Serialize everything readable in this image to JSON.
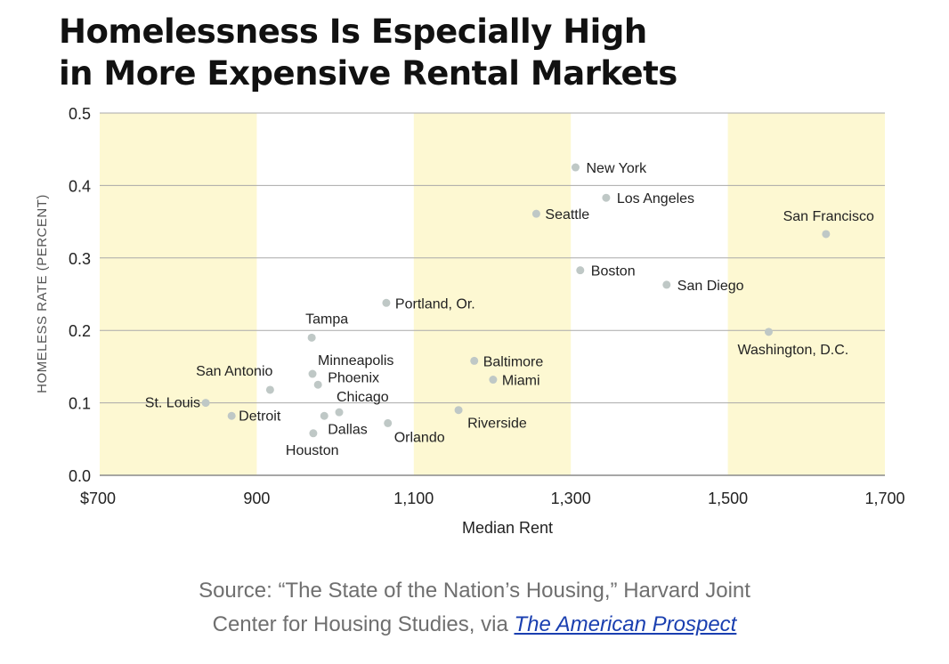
{
  "chart_data": {
    "type": "scatter",
    "title_lines": [
      "Homelessness Is Especially High",
      "in More Expensive Rental Markets"
    ],
    "xlabel": "Median Rent",
    "ylabel": "HOMELESS RATE (PERCENT)",
    "xlim": [
      700,
      1700
    ],
    "ylim": [
      0.0,
      0.5
    ],
    "x_ticks": [
      700,
      900,
      1100,
      1300,
      1500,
      1700
    ],
    "x_tick_labels": [
      "$700",
      "900",
      "1,100",
      "1,300",
      "1,500",
      "1,700"
    ],
    "y_ticks": [
      0.0,
      0.1,
      0.2,
      0.3,
      0.4,
      0.5
    ],
    "y_tick_labels": [
      "0.0",
      "0.1",
      "0.2",
      "0.3",
      "0.4",
      "0.5"
    ],
    "shaded_bands": [
      [
        700,
        900
      ],
      [
        1100,
        1300
      ],
      [
        1500,
        1700
      ]
    ],
    "band_color": "#fdf8d2",
    "grid": true,
    "point_color": "#bfc8c6",
    "points": [
      {
        "label": "St. Louis",
        "x": 835,
        "y": 0.1
      },
      {
        "label": "Detroit",
        "x": 868,
        "y": 0.082
      },
      {
        "label": "San Antonio",
        "x": 917,
        "y": 0.118
      },
      {
        "label": "Tampa",
        "x": 970,
        "y": 0.19
      },
      {
        "label": "Minneapolis",
        "x": 971,
        "y": 0.14
      },
      {
        "label": "Phoenix",
        "x": 978,
        "y": 0.125
      },
      {
        "label": "Chicago",
        "x": 1005,
        "y": 0.087
      },
      {
        "label": "Dallas",
        "x": 986,
        "y": 0.082
      },
      {
        "label": "Houston",
        "x": 972,
        "y": 0.058
      },
      {
        "label": "Portland, Or.",
        "x": 1065,
        "y": 0.238
      },
      {
        "label": "Orlando",
        "x": 1067,
        "y": 0.072
      },
      {
        "label": "Riverside",
        "x": 1157,
        "y": 0.09
      },
      {
        "label": "Baltimore",
        "x": 1177,
        "y": 0.158
      },
      {
        "label": "Miami",
        "x": 1201,
        "y": 0.132
      },
      {
        "label": "Seattle",
        "x": 1256,
        "y": 0.361
      },
      {
        "label": "New York",
        "x": 1306,
        "y": 0.425
      },
      {
        "label": "Boston",
        "x": 1312,
        "y": 0.283
      },
      {
        "label": "Los Angeles",
        "x": 1345,
        "y": 0.383
      },
      {
        "label": "San Diego",
        "x": 1422,
        "y": 0.263
      },
      {
        "label": "Washington, D.C.",
        "x": 1552,
        "y": 0.198
      },
      {
        "label": "San Francisco",
        "x": 1625,
        "y": 0.333
      }
    ]
  },
  "source": {
    "line1": "Source: “The State of the Nation’s Housing,” Harvard Joint",
    "line2_prefix": "Center for Housing Studies, via ",
    "link_text": "The American Prospect"
  }
}
